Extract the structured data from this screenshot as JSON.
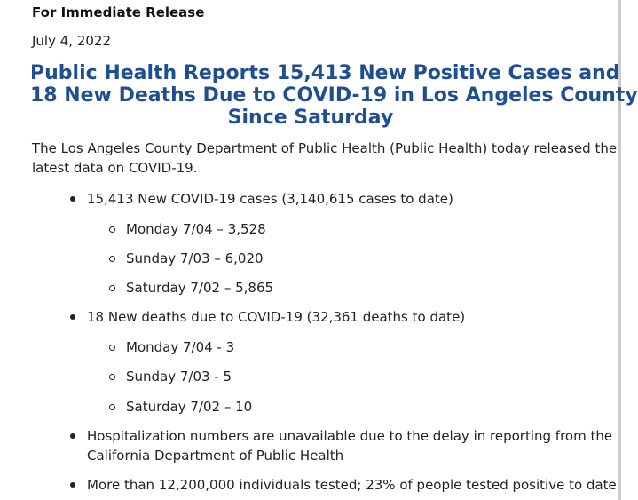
{
  "release_label": "For Immediate Release",
  "date": "July 4, 2022",
  "headline": {
    "line1": "Public Health Reports 15,413 New Positive Cases and",
    "line2": "18 New Deaths Due to COVID-19 in Los Angeles County",
    "line3": "Since Saturday"
  },
  "intro": {
    "line1": "The Los Angeles County Department of Public Health (Public Health) today released the",
    "line2": "latest data on COVID-19."
  },
  "bullets": {
    "cases": {
      "text": "15,413 New COVID-19 cases (3,140,615 cases to date)",
      "sub": [
        "Monday 7/04 – 3,528",
        "Sunday 7/03 – 6,020",
        "Saturday 7/02 – 5,865"
      ]
    },
    "deaths": {
      "text": "18 New deaths due to COVID-19 (32,361 deaths to date)",
      "sub": [
        "Monday 7/04 - 3",
        "Sunday 7/03 - 5",
        "Saturday 7/02 – 10"
      ]
    },
    "hospitalization": {
      "line1": "Hospitalization numbers are unavailable due to the delay in reporting from the",
      "line2": "California Department of Public Health"
    },
    "tested": {
      "text": "More than 12,200,000 individuals tested; 23% of people tested positive to date"
    }
  }
}
